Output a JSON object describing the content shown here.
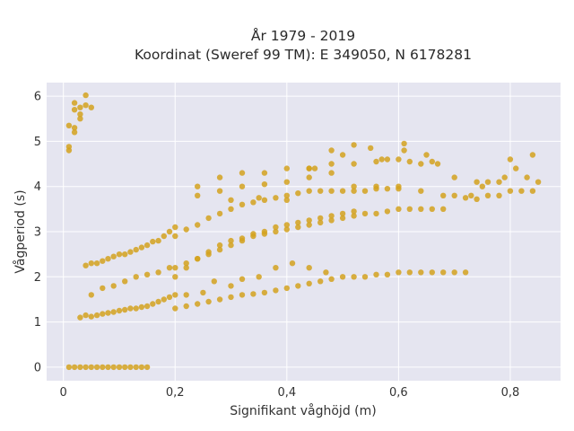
{
  "chart_data": {
    "type": "scatter",
    "title_lines": [
      "År 1979 - 2019",
      "Koordinat (Sweref 99 TM): E 349050, N 6178281"
    ],
    "xlabel": "Signifikant våghöjd (m)",
    "ylabel": "Vågperiod (s)",
    "xlim": [
      -0.03,
      0.89
    ],
    "ylim": [
      -0.3,
      6.3
    ],
    "x_ticks": [
      0,
      0.2,
      0.4,
      0.6,
      0.8
    ],
    "x_tick_labels": [
      "0",
      "0,2",
      "0,4",
      "0,6",
      "0,8"
    ],
    "y_ticks": [
      0,
      1,
      2,
      3,
      4,
      5,
      6
    ],
    "y_tick_labels": [
      "0",
      "1",
      "2",
      "3",
      "4",
      "5",
      "6"
    ],
    "grid": true,
    "colors": {
      "marker": "#d4a21e",
      "background": "#e5e5f0",
      "grid": "#ffffff"
    },
    "series": [
      {
        "x": [
          0.01,
          0.02,
          0.03,
          0.04,
          0.05,
          0.06,
          0.07,
          0.08,
          0.09,
          0.1,
          0.11,
          0.12,
          0.13,
          0.14,
          0.15,
          0.01,
          0.01,
          0.01,
          0.02,
          0.02,
          0.02,
          0.03,
          0.03,
          0.04,
          0.04,
          0.05,
          0.02,
          0.03,
          0.03,
          0.04,
          0.05,
          0.06,
          0.07,
          0.08,
          0.09,
          0.1,
          0.11,
          0.12,
          0.13,
          0.14,
          0.15,
          0.16,
          0.17,
          0.18,
          0.19,
          0.2,
          0.04,
          0.05,
          0.06,
          0.07,
          0.08,
          0.09,
          0.1,
          0.11,
          0.12,
          0.13,
          0.14,
          0.15,
          0.16,
          0.17,
          0.18,
          0.19,
          0.2,
          0.05,
          0.07,
          0.09,
          0.11,
          0.13,
          0.15,
          0.17,
          0.19,
          0.2,
          0.22,
          0.24,
          0.26,
          0.28,
          0.3,
          0.32,
          0.34,
          0.36,
          0.38,
          0.4,
          0.42,
          0.44,
          0.46,
          0.48,
          0.5,
          0.52,
          0.54,
          0.56,
          0.58,
          0.6,
          0.62,
          0.64,
          0.66,
          0.68,
          0.7,
          0.72,
          0.2,
          0.22,
          0.24,
          0.26,
          0.28,
          0.3,
          0.32,
          0.34,
          0.36,
          0.38,
          0.4,
          0.42,
          0.44,
          0.46,
          0.48,
          0.5,
          0.52,
          0.54,
          0.56,
          0.58,
          0.6,
          0.62,
          0.64,
          0.66,
          0.68,
          0.2,
          0.22,
          0.24,
          0.26,
          0.28,
          0.3,
          0.32,
          0.34,
          0.36,
          0.38,
          0.4,
          0.42,
          0.44,
          0.46,
          0.48,
          0.5,
          0.52,
          0.54,
          0.56,
          0.58,
          0.6,
          0.24,
          0.28,
          0.32,
          0.36,
          0.4,
          0.44,
          0.48,
          0.52,
          0.56,
          0.6,
          0.64,
          0.68,
          0.7,
          0.72,
          0.74,
          0.76,
          0.78,
          0.8,
          0.82,
          0.84,
          0.85,
          0.83,
          0.81,
          0.79,
          0.76,
          0.75,
          0.73,
          0.2,
          0.22,
          0.24,
          0.26,
          0.28,
          0.3,
          0.32,
          0.34,
          0.36,
          0.38,
          0.4,
          0.42,
          0.44,
          0.46,
          0.48,
          0.5,
          0.52,
          0.24,
          0.28,
          0.32,
          0.36,
          0.4,
          0.44,
          0.48,
          0.52,
          0.56,
          0.6,
          0.62,
          0.64,
          0.66,
          0.7,
          0.74,
          0.78,
          0.8,
          0.84,
          0.3,
          0.35,
          0.4,
          0.45,
          0.5,
          0.52,
          0.55,
          0.58,
          0.61,
          0.61,
          0.65,
          0.67,
          0.57,
          0.48,
          0.44,
          0.22,
          0.25,
          0.27,
          0.3,
          0.32,
          0.35,
          0.38,
          0.41,
          0.44,
          0.47
        ],
        "y": [
          0,
          0,
          0,
          0,
          0,
          0,
          0,
          0,
          0,
          0,
          0,
          0,
          0,
          0,
          0,
          4.8,
          4.88,
          5.35,
          5.3,
          5.7,
          5.85,
          5.6,
          5.75,
          5.8,
          6.02,
          5.75,
          5.2,
          5.5,
          1.1,
          1.15,
          1.12,
          1.15,
          1.18,
          1.2,
          1.22,
          1.25,
          1.27,
          1.3,
          1.3,
          1.33,
          1.35,
          1.4,
          1.45,
          1.5,
          1.55,
          1.6,
          2.25,
          2.3,
          2.3,
          2.35,
          2.4,
          2.45,
          2.5,
          2.5,
          2.55,
          2.6,
          2.65,
          2.7,
          2.78,
          2.8,
          2.9,
          3.0,
          3.1,
          1.6,
          1.75,
          1.8,
          1.9,
          2.0,
          2.05,
          2.1,
          2.2,
          1.3,
          1.35,
          1.4,
          1.45,
          1.5,
          1.55,
          1.6,
          1.62,
          1.65,
          1.7,
          1.75,
          1.8,
          1.85,
          1.9,
          1.95,
          2.0,
          2.0,
          2.0,
          2.05,
          2.05,
          2.1,
          2.1,
          2.1,
          2.1,
          2.1,
          2.1,
          2.1,
          2.2,
          2.3,
          2.4,
          2.5,
          2.6,
          2.7,
          2.8,
          2.9,
          2.95,
          3.0,
          3.05,
          3.1,
          3.15,
          3.2,
          3.25,
          3.3,
          3.35,
          3.4,
          3.4,
          3.45,
          3.5,
          3.5,
          3.5,
          3.5,
          3.5,
          2.9,
          3.05,
          3.15,
          3.3,
          3.4,
          3.5,
          3.6,
          3.65,
          3.7,
          3.75,
          3.8,
          3.85,
          3.9,
          3.9,
          3.9,
          3.9,
          3.9,
          3.9,
          3.95,
          3.95,
          4.0,
          3.8,
          3.9,
          4.0,
          4.05,
          4.1,
          4.2,
          4.3,
          4.0,
          4.0,
          3.95,
          3.9,
          3.8,
          3.8,
          3.75,
          3.72,
          3.8,
          3.8,
          3.9,
          3.9,
          3.9,
          4.1,
          4.2,
          4.4,
          4.2,
          4.1,
          4.0,
          3.8,
          2.0,
          2.2,
          2.4,
          2.55,
          2.7,
          2.8,
          2.85,
          2.95,
          3.0,
          3.1,
          3.15,
          3.2,
          3.25,
          3.3,
          3.35,
          3.4,
          3.45,
          4.0,
          4.2,
          4.3,
          4.3,
          4.4,
          4.4,
          4.5,
          4.5,
          4.55,
          4.6,
          4.55,
          4.5,
          4.55,
          4.2,
          4.1,
          4.1,
          4.6,
          4.7,
          3.7,
          3.75,
          3.7,
          4.4,
          4.7,
          4.92,
          4.85,
          4.6,
          4.95,
          4.8,
          4.7,
          4.5,
          4.6,
          4.8,
          4.4,
          1.6,
          1.65,
          1.9,
          1.8,
          1.95,
          2.0,
          2.2,
          2.3,
          2.2,
          2.1
        ]
      }
    ]
  }
}
